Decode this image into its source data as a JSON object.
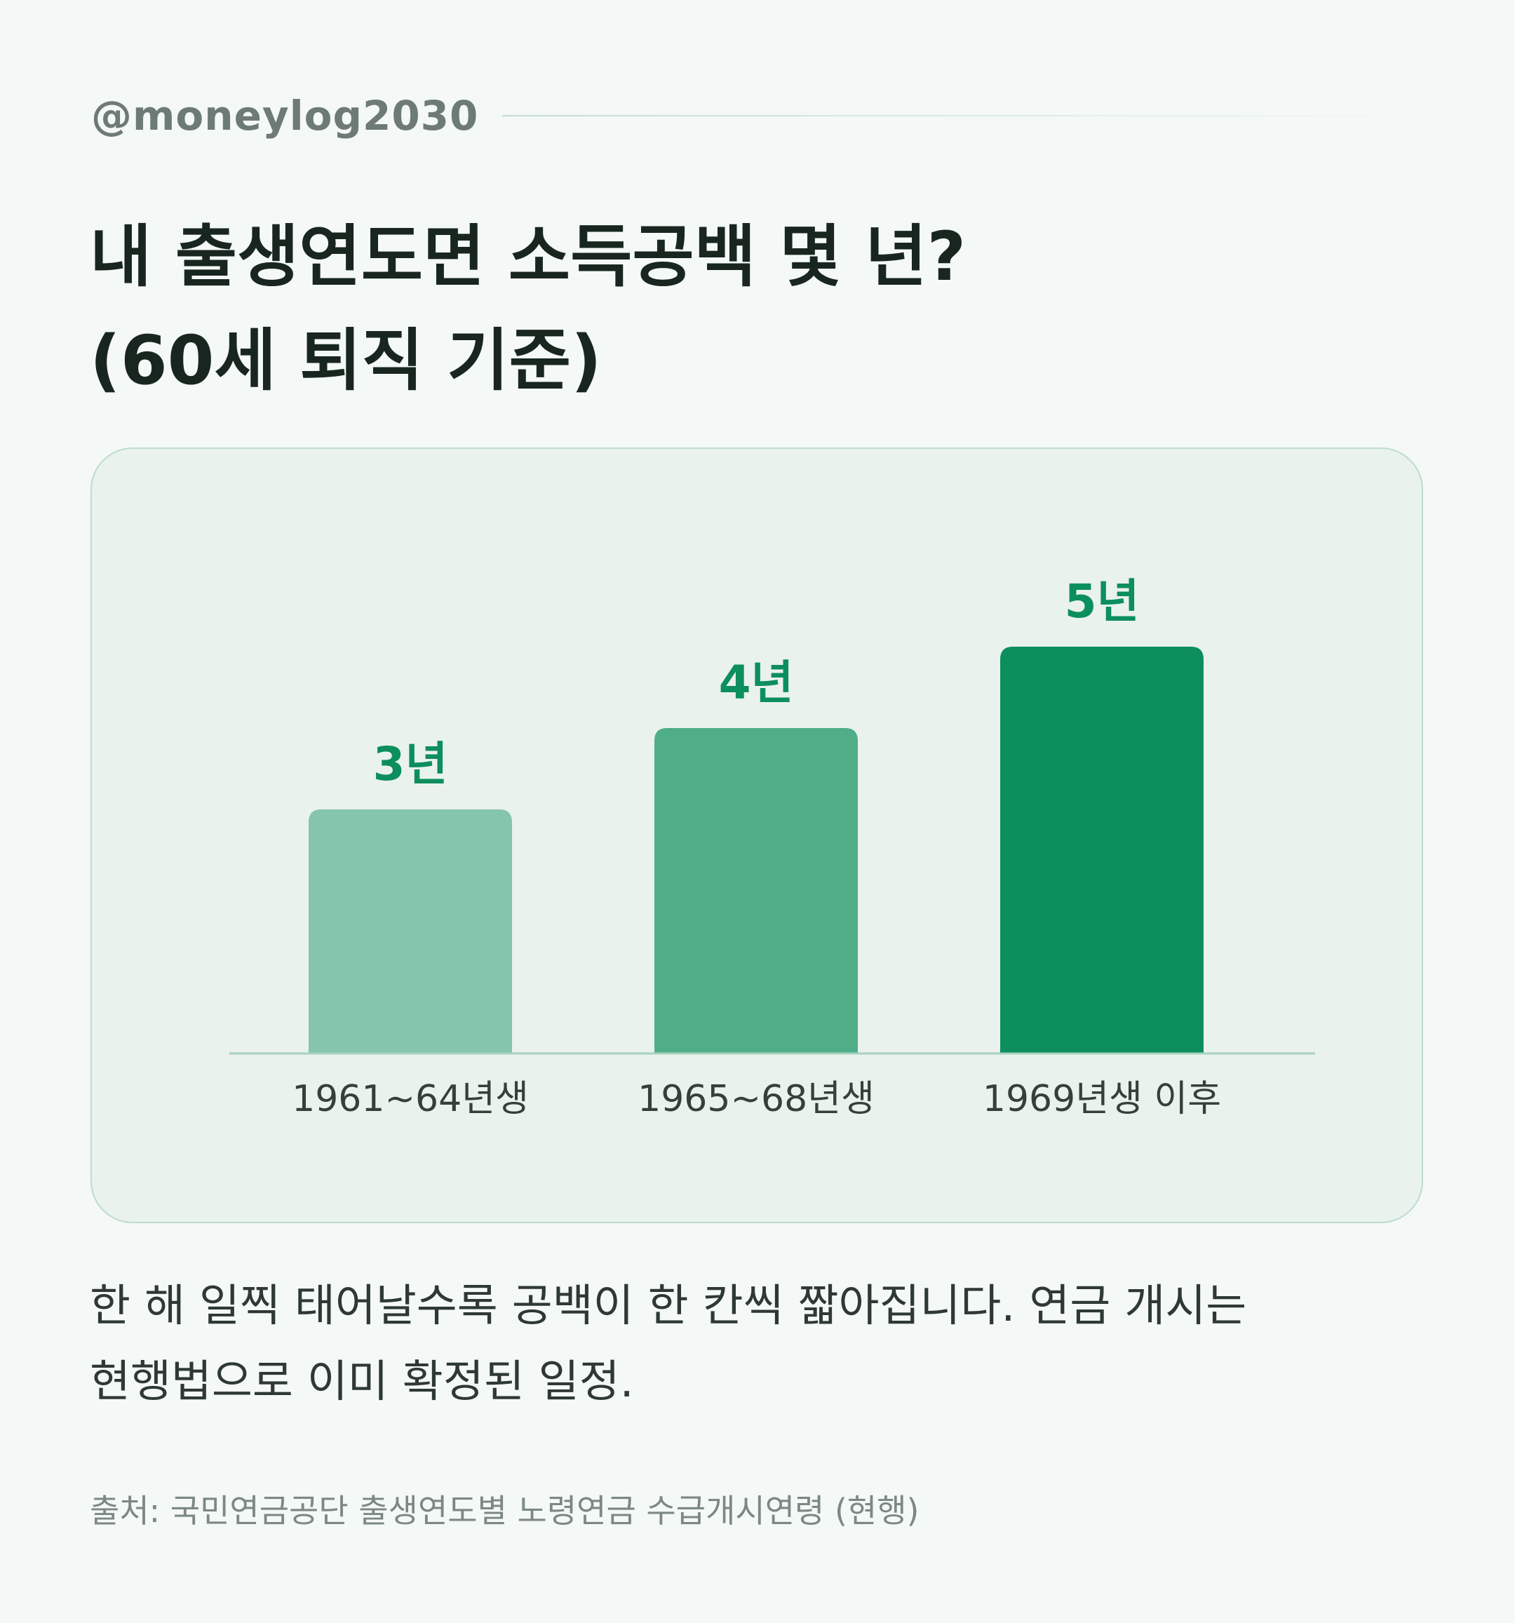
{
  "handle": "@moneylog2030",
  "title": {
    "line1": "내 출생연도면 소득공백 몇 년?",
    "line2": "(60세 퇴직 기준)"
  },
  "chart_data": {
    "type": "bar",
    "categories": [
      "1961~64년생",
      "1965~68년생",
      "1969년생 이후"
    ],
    "values": [
      3,
      4,
      5
    ],
    "value_labels": [
      "3년",
      "4년",
      "5년"
    ],
    "unit": "년",
    "ylim": [
      0,
      5
    ],
    "grid": false,
    "colors": [
      "#86c5ad",
      "#4fae88",
      "#0c8f5d"
    ],
    "label_color": "#0c8f5d"
  },
  "caption": {
    "line1": "한 해 일찍 태어날수록 공백이 한 칸씩 짧아집니다. 연금 개시는",
    "line2": "현행법으로 이미 확정된 일정."
  },
  "source": "출처: 국민연금공단 출생연도별 노령연금 수급개시연령 (현행)"
}
